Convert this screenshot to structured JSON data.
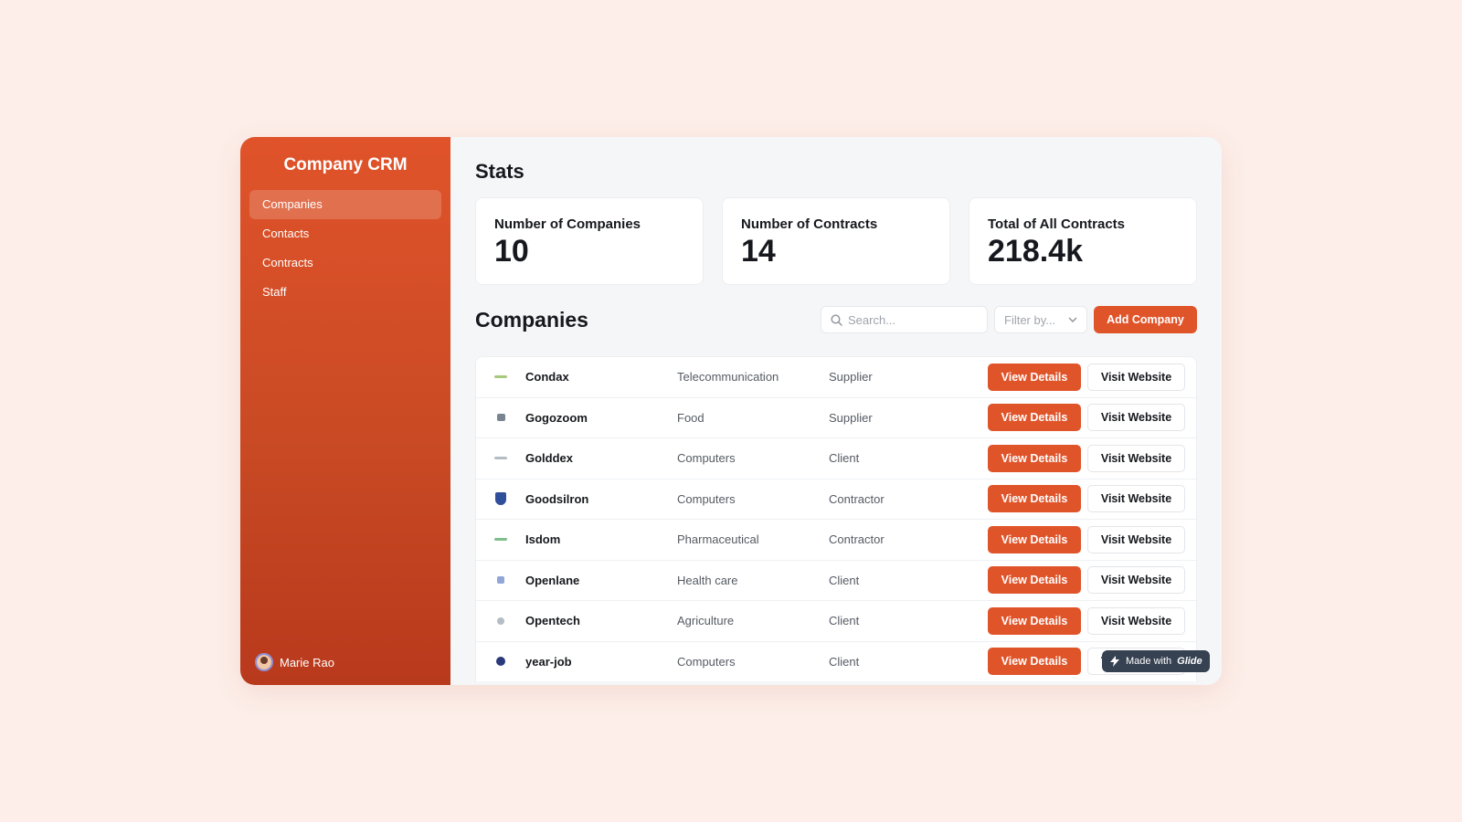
{
  "sidebar": {
    "title": "Company CRM",
    "items": [
      {
        "label": "Companies",
        "active": true
      },
      {
        "label": "Contacts",
        "active": false
      },
      {
        "label": "Contracts",
        "active": false
      },
      {
        "label": "Staff",
        "active": false
      }
    ],
    "user_name": "Marie Rao"
  },
  "stats": {
    "heading": "Stats",
    "cards": [
      {
        "label": "Number of Companies",
        "value": "10"
      },
      {
        "label": "Number of Contracts",
        "value": "14"
      },
      {
        "label": "Total of All Contracts",
        "value": "218.4k"
      }
    ]
  },
  "companies": {
    "heading": "Companies",
    "search_placeholder": "Search...",
    "filter_label": "Filter by...",
    "add_button": "Add Company",
    "view_label": "View Details",
    "visit_label": "Visit Website",
    "rows": [
      {
        "name": "Condax",
        "industry": "Telecommunication",
        "type": "Supplier"
      },
      {
        "name": "Gogozoom",
        "industry": "Food",
        "type": "Supplier"
      },
      {
        "name": "Golddex",
        "industry": "Computers",
        "type": "Client"
      },
      {
        "name": "Goodsilron",
        "industry": "Computers",
        "type": "Contractor"
      },
      {
        "name": "Isdom",
        "industry": "Pharmaceutical",
        "type": "Contractor"
      },
      {
        "name": "Openlane",
        "industry": "Health care",
        "type": "Client"
      },
      {
        "name": "Opentech",
        "industry": "Agriculture",
        "type": "Client"
      },
      {
        "name": "year-job",
        "industry": "Computers",
        "type": "Client"
      }
    ]
  },
  "badge": {
    "prefix": "Made with",
    "brand": "Glide"
  },
  "colors": {
    "accent": "#e0542a",
    "sidebar_top": "#e0532a",
    "sidebar_bottom": "#b8391c",
    "background": "#fdeee9"
  }
}
